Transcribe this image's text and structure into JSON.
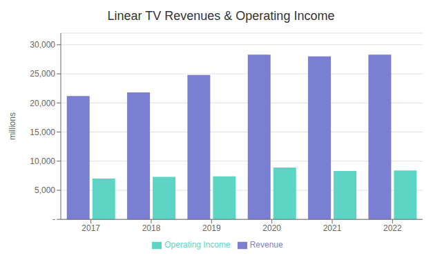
{
  "chart_data": {
    "type": "bar",
    "title": "Linear TV Revenues & Operating Income",
    "y_label": "millions",
    "categories": [
      "2017",
      "2018",
      "2019",
      "2020",
      "2021",
      "2022"
    ],
    "series": [
      {
        "name": "Revenue",
        "color": "#7B7FD4",
        "values": [
          21200,
          21800,
          24800,
          28300,
          28000,
          28300
        ]
      },
      {
        "name": "Operating Income",
        "color": "#5DD5C5",
        "values": [
          7000,
          7300,
          7400,
          8900,
          8300,
          8400
        ]
      }
    ],
    "ylim": [
      0,
      32000
    ],
    "yticks": [
      {
        "value": 0,
        "label": "-"
      },
      {
        "value": 5000,
        "label": "5,000"
      },
      {
        "value": 10000,
        "label": "10,000"
      },
      {
        "value": 15000,
        "label": "15,000"
      },
      {
        "value": 20000,
        "label": "20,000"
      },
      {
        "value": 25000,
        "label": "25,000"
      },
      {
        "value": 30000,
        "label": "30,000"
      }
    ],
    "grid": true,
    "legend": "bottom"
  }
}
